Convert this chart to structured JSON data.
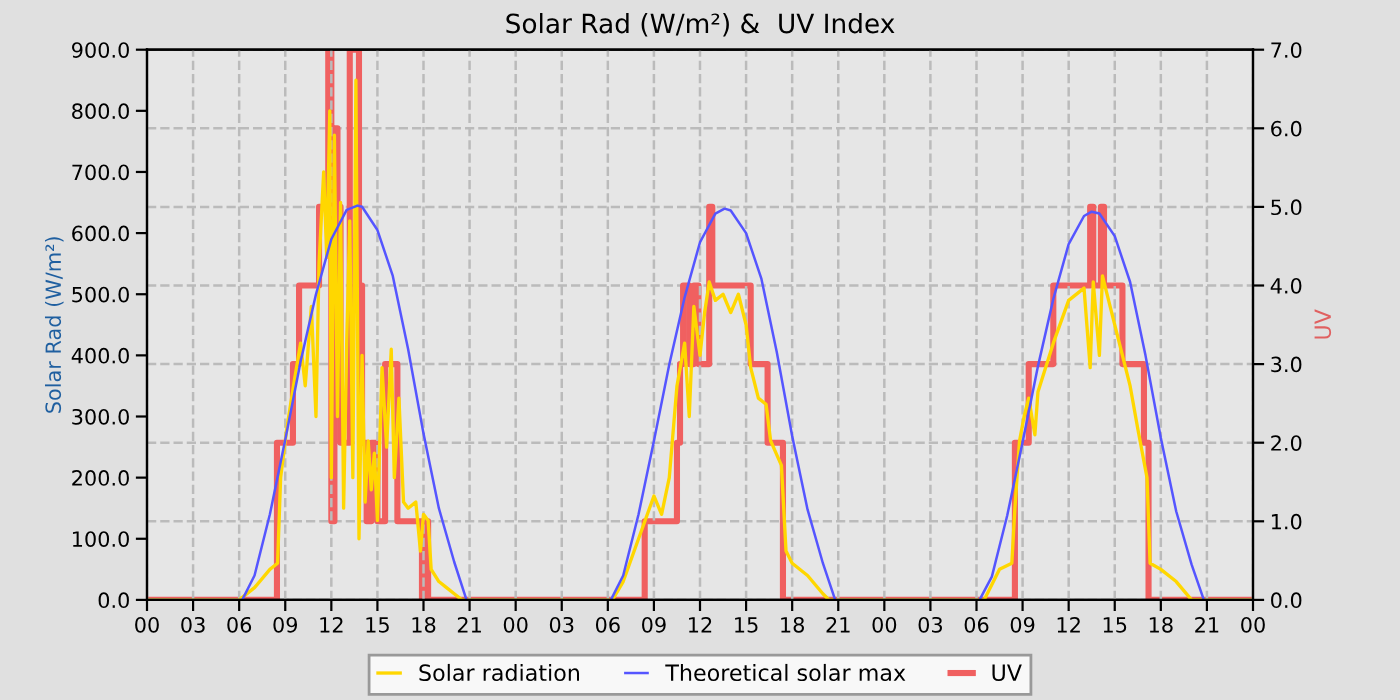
{
  "chart_data": {
    "type": "line",
    "title": "Solar Rad (W/m²) &  UV Index",
    "ylabel": "Solar Rad (W/m²)",
    "y2label": "UV",
    "xlim": [
      0,
      72
    ],
    "xticks": [
      {
        "value": 0,
        "label": "00"
      },
      {
        "value": 3,
        "label": "03"
      },
      {
        "value": 6,
        "label": "06"
      },
      {
        "value": 9,
        "label": "09"
      },
      {
        "value": 12,
        "label": "12"
      },
      {
        "value": 15,
        "label": "15"
      },
      {
        "value": 18,
        "label": "18"
      },
      {
        "value": 21,
        "label": "21"
      },
      {
        "value": 24,
        "label": "00"
      },
      {
        "value": 27,
        "label": "03"
      },
      {
        "value": 30,
        "label": "06"
      },
      {
        "value": 33,
        "label": "09"
      },
      {
        "value": 36,
        "label": "12"
      },
      {
        "value": 39,
        "label": "15"
      },
      {
        "value": 42,
        "label": "18"
      },
      {
        "value": 45,
        "label": "21"
      },
      {
        "value": 48,
        "label": "00"
      },
      {
        "value": 51,
        "label": "03"
      },
      {
        "value": 54,
        "label": "06"
      },
      {
        "value": 57,
        "label": "09"
      },
      {
        "value": 60,
        "label": "12"
      },
      {
        "value": 63,
        "label": "15"
      },
      {
        "value": 66,
        "label": "18"
      },
      {
        "value": 69,
        "label": "21"
      },
      {
        "value": 72,
        "label": "00"
      }
    ],
    "ylim": [
      0,
      900
    ],
    "yticks": [
      {
        "value": 0,
        "label": "0.0"
      },
      {
        "value": 100,
        "label": "100.0"
      },
      {
        "value": 200,
        "label": "200.0"
      },
      {
        "value": 300,
        "label": "300.0"
      },
      {
        "value": 400,
        "label": "400.0"
      },
      {
        "value": 500,
        "label": "500.0"
      },
      {
        "value": 600,
        "label": "600.0"
      },
      {
        "value": 700,
        "label": "700.0"
      },
      {
        "value": 800,
        "label": "800.0"
      },
      {
        "value": 900,
        "label": "900.0"
      }
    ],
    "y2lim": [
      0,
      7
    ],
    "y2ticks": [
      {
        "value": 0,
        "label": "0.0"
      },
      {
        "value": 1,
        "label": "1.0"
      },
      {
        "value": 2,
        "label": "2.0"
      },
      {
        "value": 3,
        "label": "3.0"
      },
      {
        "value": 4,
        "label": "4.0"
      },
      {
        "value": 5,
        "label": "5.0"
      },
      {
        "value": 6,
        "label": "6.0"
      },
      {
        "value": 7,
        "label": "7.0"
      }
    ],
    "grid": true,
    "legend": "bottom",
    "line_style": "solid",
    "series": [
      {
        "name": "Solar radiation",
        "color": "#ffd700",
        "x": [
          0,
          6.0,
          7,
          8,
          8.5,
          8.7,
          9.1,
          9.6,
          10,
          10.3,
          10.7,
          11,
          11.2,
          11.5,
          11.7,
          11.9,
          12.0,
          12.2,
          12.4,
          12.6,
          12.8,
          13.0,
          13.2,
          13.4,
          13.6,
          13.8,
          14.0,
          14.2,
          14.4,
          14.6,
          14.8,
          15.0,
          15.3,
          15.6,
          15.9,
          16.1,
          16.4,
          16.7,
          17.0,
          17.5,
          17.8,
          18.0,
          18.3,
          18.5,
          19,
          19.5,
          20,
          20.5,
          30.3,
          31,
          32,
          33,
          33.5,
          34,
          34.5,
          35,
          35.3,
          35.6,
          36,
          36.3,
          36.6,
          37,
          37.5,
          38,
          38.5,
          39,
          39.3,
          39.8,
          40.3,
          40.6,
          41.3,
          41.6,
          42,
          43,
          44,
          44.4,
          54.5,
          55.5,
          56.3,
          56.5,
          56.8,
          57.1,
          57.4,
          57.8,
          58,
          59,
          60,
          61,
          61.4,
          61.6,
          62,
          62.2,
          63,
          64,
          64.5,
          65.1,
          65.3,
          66,
          67,
          68,
          72
        ],
        "values": [
          0,
          0,
          20,
          50,
          60,
          200,
          280,
          360,
          420,
          350,
          480,
          300,
          550,
          700,
          560,
          800,
          200,
          760,
          300,
          650,
          150,
          420,
          620,
          200,
          850,
          100,
          400,
          160,
          260,
          180,
          240,
          130,
          380,
          250,
          410,
          200,
          330,
          160,
          150,
          160,
          80,
          140,
          130,
          50,
          30,
          20,
          10,
          0,
          0,
          30,
          100,
          170,
          140,
          200,
          350,
          420,
          300,
          480,
          400,
          470,
          520,
          490,
          500,
          470,
          500,
          450,
          380,
          330,
          320,
          260,
          220,
          80,
          60,
          40,
          10,
          0,
          0,
          50,
          60,
          150,
          260,
          300,
          330,
          270,
          340,
          420,
          490,
          510,
          380,
          520,
          400,
          530,
          450,
          350,
          280,
          200,
          60,
          50,
          30,
          0,
          0
        ]
      },
      {
        "name": "Theoretical solar max",
        "color": "#5555ff",
        "x": [
          0,
          6.2,
          7,
          8,
          9,
          10,
          11,
          12,
          13,
          13.7,
          14,
          15,
          16,
          17,
          18,
          19,
          20,
          20.8,
          30.2,
          31,
          32,
          33,
          34,
          35,
          36,
          37,
          37.6,
          38,
          39,
          40,
          41,
          42,
          43,
          44,
          44.8,
          54.2,
          55,
          56,
          57,
          58,
          59,
          60,
          61,
          61.5,
          62,
          63,
          64,
          65,
          66,
          67,
          68,
          68.8,
          72
        ],
        "values": [
          0,
          0,
          40,
          140,
          262,
          390,
          500,
          590,
          638,
          645,
          643,
          605,
          530,
          410,
          272,
          150,
          62,
          0,
          0,
          40,
          140,
          260,
          385,
          495,
          585,
          632,
          640,
          637,
          600,
          525,
          405,
          268,
          148,
          60,
          0,
          0,
          38,
          138,
          258,
          382,
          492,
          582,
          628,
          635,
          632,
          595,
          520,
          400,
          265,
          145,
          58,
          0,
          0
        ]
      },
      {
        "name": "UV",
        "color": "#f06060",
        "type": "step",
        "axis": "y2",
        "x": [
          0,
          8.46,
          9.5,
          9.9,
          11.2,
          11.8,
          12.0,
          12.2,
          12.4,
          12.6,
          13.2,
          13.8,
          14.0,
          14.3,
          14.6,
          15.0,
          15.5,
          16.3,
          17.5,
          17.9,
          18.0,
          18.3,
          32.4,
          34.5,
          34.7,
          34.9,
          35.3,
          35.6,
          35.9,
          36.6,
          36.8,
          39.3,
          40.4,
          41.4,
          56.5,
          57.4,
          59.0,
          61.4,
          61.6,
          62.1,
          62.3,
          63.5,
          64.9,
          65.2,
          72
        ],
        "values": [
          0,
          2,
          3,
          4,
          5,
          7,
          1,
          6,
          5,
          2,
          7,
          4,
          2,
          1,
          2,
          1,
          3,
          1,
          1,
          0,
          1,
          0,
          1,
          2,
          3,
          4,
          3,
          4,
          3,
          5,
          4,
          3,
          2,
          0,
          2,
          3,
          4,
          5,
          4,
          5,
          4,
          3,
          2,
          0,
          0
        ]
      }
    ]
  }
}
